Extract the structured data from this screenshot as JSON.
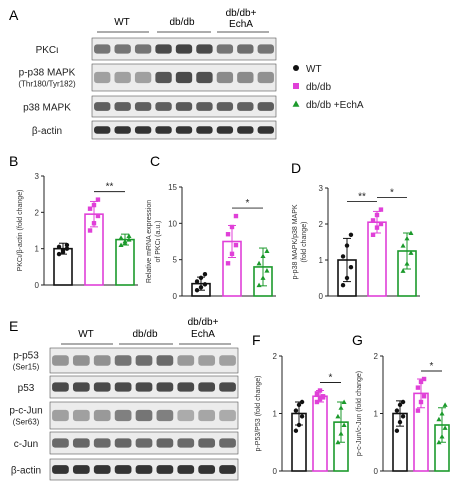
{
  "colors": {
    "wt": "#111111",
    "dbdb": "#e040d8",
    "echa": "#1c9a2c",
    "axis": "#222222"
  },
  "panel_letters": [
    "A",
    "B",
    "C",
    "D",
    "E",
    "F",
    "G"
  ],
  "group_labels": {
    "wt": "WT",
    "dbdb": "db/db",
    "echa_line1": "db/db+",
    "echa_line2": "EchA"
  },
  "blot_a": {
    "rows": [
      {
        "label_lines": [
          "PKCι"
        ],
        "intensity": [
          0.55,
          0.55,
          0.55,
          0.75,
          0.78,
          0.75,
          0.55,
          0.58,
          0.55
        ]
      },
      {
        "label_lines": [
          "p-p38 MAPK",
          "(Thr180/Tyr182)"
        ],
        "intensity": [
          0.35,
          0.35,
          0.35,
          0.7,
          0.75,
          0.72,
          0.45,
          0.45,
          0.42
        ]
      },
      {
        "label_lines": [
          "p38 MAPK"
        ],
        "intensity": [
          0.65,
          0.65,
          0.65,
          0.65,
          0.68,
          0.66,
          0.65,
          0.64,
          0.66
        ]
      },
      {
        "label_lines": [
          "β-actin"
        ],
        "intensity": [
          0.85,
          0.85,
          0.85,
          0.85,
          0.85,
          0.85,
          0.85,
          0.85,
          0.85
        ]
      }
    ]
  },
  "blot_e": {
    "rows": [
      {
        "label_lines": [
          "p-p53",
          "(Ser15)"
        ],
        "intensity": [
          0.4,
          0.42,
          0.42,
          0.55,
          0.58,
          0.6,
          0.38,
          0.36,
          0.35
        ]
      },
      {
        "label_lines": [
          "p53"
        ],
        "intensity": [
          0.75,
          0.75,
          0.75,
          0.75,
          0.75,
          0.75,
          0.75,
          0.75,
          0.75
        ]
      },
      {
        "label_lines": [
          "p-c-Jun",
          "(Ser63)"
        ],
        "intensity": [
          0.35,
          0.35,
          0.38,
          0.5,
          0.55,
          0.5,
          0.3,
          0.32,
          0.3
        ]
      },
      {
        "label_lines": [
          "c-Jun"
        ],
        "intensity": [
          0.6,
          0.62,
          0.6,
          0.62,
          0.6,
          0.62,
          0.6,
          0.62,
          0.6
        ]
      },
      {
        "label_lines": [
          "β-actin"
        ],
        "intensity": [
          0.85,
          0.85,
          0.85,
          0.85,
          0.85,
          0.85,
          0.85,
          0.85,
          0.85
        ]
      }
    ]
  },
  "legend": {
    "entries": [
      {
        "label": "WT",
        "group": "wt",
        "marker": "circle"
      },
      {
        "label": "db/db",
        "group": "dbdb",
        "marker": "square"
      },
      {
        "label": "db/db +EchA",
        "group": "echa",
        "marker": "triangle"
      }
    ]
  },
  "chart_data": [
    {
      "panel": "B",
      "type": "bar",
      "categories": [
        "WT",
        "db/db",
        "db/db +EchA"
      ],
      "values": [
        1.0,
        1.95,
        1.25
      ],
      "errors": [
        0.15,
        0.35,
        0.15
      ],
      "ylabel": "PKCι/β-actin (fold change)",
      "ylim": [
        0,
        3
      ],
      "yticks": [
        "0",
        "1",
        "2",
        "3"
      ],
      "points": [
        [
          0.85,
          0.95,
          1.0,
          1.05,
          0.9,
          1.1
        ],
        [
          1.5,
          1.7,
          1.9,
          2.1,
          2.2,
          2.35
        ],
        [
          1.1,
          1.2,
          1.25,
          1.3,
          1.15,
          1.35
        ]
      ],
      "significance": [
        {
          "between": [
            1,
            2
          ],
          "label": "**"
        }
      ]
    },
    {
      "panel": "C",
      "type": "bar",
      "categories": [
        "WT",
        "db/db",
        "db/db +EchA"
      ],
      "values": [
        1.7,
        7.5,
        4.0
      ],
      "errors": [
        0.9,
        2.2,
        2.6
      ],
      "ylabel_lines": [
        "Relative mRNA expression",
        "of PKCι (a.u.)"
      ],
      "ylim": [
        0,
        15
      ],
      "yticks": [
        "0",
        "5",
        "10",
        "15"
      ],
      "points": [
        [
          0.8,
          1.2,
          1.6,
          2.0,
          2.5,
          3.0
        ],
        [
          4.5,
          5.8,
          7.0,
          8.5,
          9.5,
          11.0
        ],
        [
          1.5,
          2.5,
          3.5,
          4.5,
          5.5,
          6.2
        ]
      ],
      "significance": [
        {
          "between": [
            1,
            2
          ],
          "label": "*"
        }
      ]
    },
    {
      "panel": "D",
      "type": "bar",
      "categories": [
        "WT",
        "db/db",
        "db/db +EchA"
      ],
      "values": [
        1.0,
        2.05,
        1.25
      ],
      "errors": [
        0.6,
        0.3,
        0.5
      ],
      "ylabel_lines": [
        "p-p38 MAPK/p38 MAPK",
        "(fold change)"
      ],
      "ylim": [
        0,
        3
      ],
      "yticks": [
        "0",
        "1",
        "2",
        "3"
      ],
      "points": [
        [
          0.3,
          0.5,
          0.8,
          1.1,
          1.4,
          1.7
        ],
        [
          1.7,
          1.9,
          2.0,
          2.1,
          2.25,
          2.4
        ],
        [
          0.7,
          0.9,
          1.2,
          1.4,
          1.6,
          1.75
        ]
      ],
      "significance": [
        {
          "between": [
            0,
            1
          ],
          "label": "**"
        },
        {
          "between": [
            1,
            2
          ],
          "label": "*"
        }
      ]
    },
    {
      "panel": "F",
      "type": "bar",
      "categories": [
        "WT",
        "db/db",
        "db/db +EchA"
      ],
      "values": [
        1.0,
        1.3,
        0.85
      ],
      "errors": [
        0.2,
        0.1,
        0.35
      ],
      "ylabel": "p-P53/P53 (fold change)",
      "ylim": [
        0,
        2
      ],
      "yticks": [
        "0",
        "1",
        "2"
      ],
      "points": [
        [
          0.7,
          0.8,
          0.95,
          1.05,
          1.15,
          1.2
        ],
        [
          1.2,
          1.25,
          1.3,
          1.35,
          1.4,
          1.28
        ],
        [
          0.5,
          0.65,
          0.8,
          0.95,
          1.1,
          1.2
        ]
      ],
      "significance": [
        {
          "between": [
            1,
            2
          ],
          "label": "*"
        }
      ]
    },
    {
      "panel": "G",
      "type": "bar",
      "categories": [
        "WT",
        "db/db",
        "db/db +EchA"
      ],
      "values": [
        1.0,
        1.35,
        0.8
      ],
      "errors": [
        0.22,
        0.25,
        0.3
      ],
      "ylabel": "p-c-Jun/c-Jun (fold change)",
      "ylim": [
        0,
        2
      ],
      "yticks": [
        "0",
        "1",
        "2"
      ],
      "points": [
        [
          0.7,
          0.85,
          0.95,
          1.05,
          1.15,
          1.2
        ],
        [
          1.05,
          1.2,
          1.3,
          1.45,
          1.55,
          1.6
        ],
        [
          0.5,
          0.6,
          0.75,
          0.9,
          1.0,
          1.15
        ]
      ],
      "significance": [
        {
          "between": [
            1,
            2
          ],
          "label": "*"
        }
      ]
    }
  ]
}
